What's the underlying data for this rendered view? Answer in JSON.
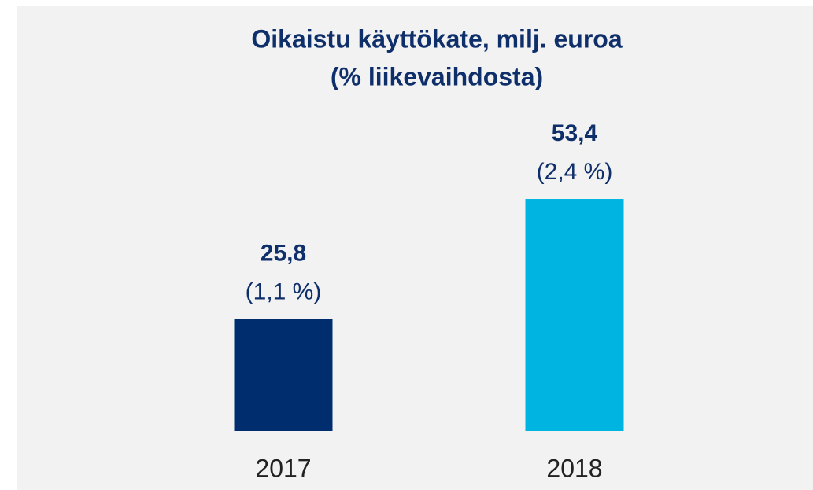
{
  "chart_data": {
    "type": "bar",
    "title": "Oikaistu käyttökate, milj. euroa",
    "subtitle": "(% liikevaihdosta)",
    "categories": [
      "2017",
      "2018"
    ],
    "values": [
      25.8,
      53.4
    ],
    "value_labels": [
      "25,8",
      "53,4"
    ],
    "value_notes": [
      "(1,1 %)",
      "(2,4 %)"
    ],
    "colors": [
      "#002d6e",
      "#00b4e1"
    ]
  }
}
